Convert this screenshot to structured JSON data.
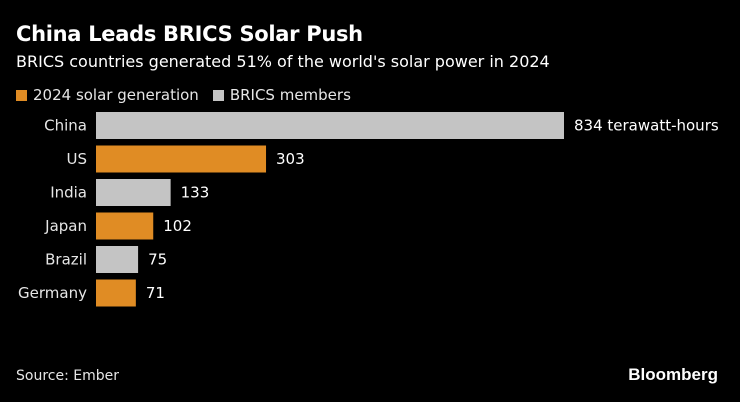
{
  "title": "China Leads BRICS Solar Push",
  "subtitle": "BRICS countries generated 51% of the world's solar power in 2024",
  "source": "Source: Ember",
  "logo": "Bloomberg",
  "colors": {
    "orange": "#e08c24",
    "gray": "#c4c4c4",
    "background": "#000000"
  },
  "chart_data": {
    "type": "bar",
    "orientation": "horizontal",
    "categories": [
      "China",
      "US",
      "India",
      "Japan",
      "Brazil",
      "Germany"
    ],
    "values": [
      834,
      303,
      133,
      102,
      75,
      71
    ],
    "data_labels": [
      "834 terawatt-hours",
      "303",
      "133",
      "102",
      "75",
      "71"
    ],
    "groups": [
      "BRICS members",
      "2024 solar generation",
      "BRICS members",
      "2024 solar generation",
      "BRICS members",
      "2024 solar generation"
    ],
    "legend": [
      {
        "name": "2024 solar generation",
        "color": "#e08c24"
      },
      {
        "name": "BRICS members",
        "color": "#c4c4c4"
      }
    ],
    "legend_placement": "top-left",
    "grid": false,
    "xlim": [
      0,
      834
    ]
  }
}
